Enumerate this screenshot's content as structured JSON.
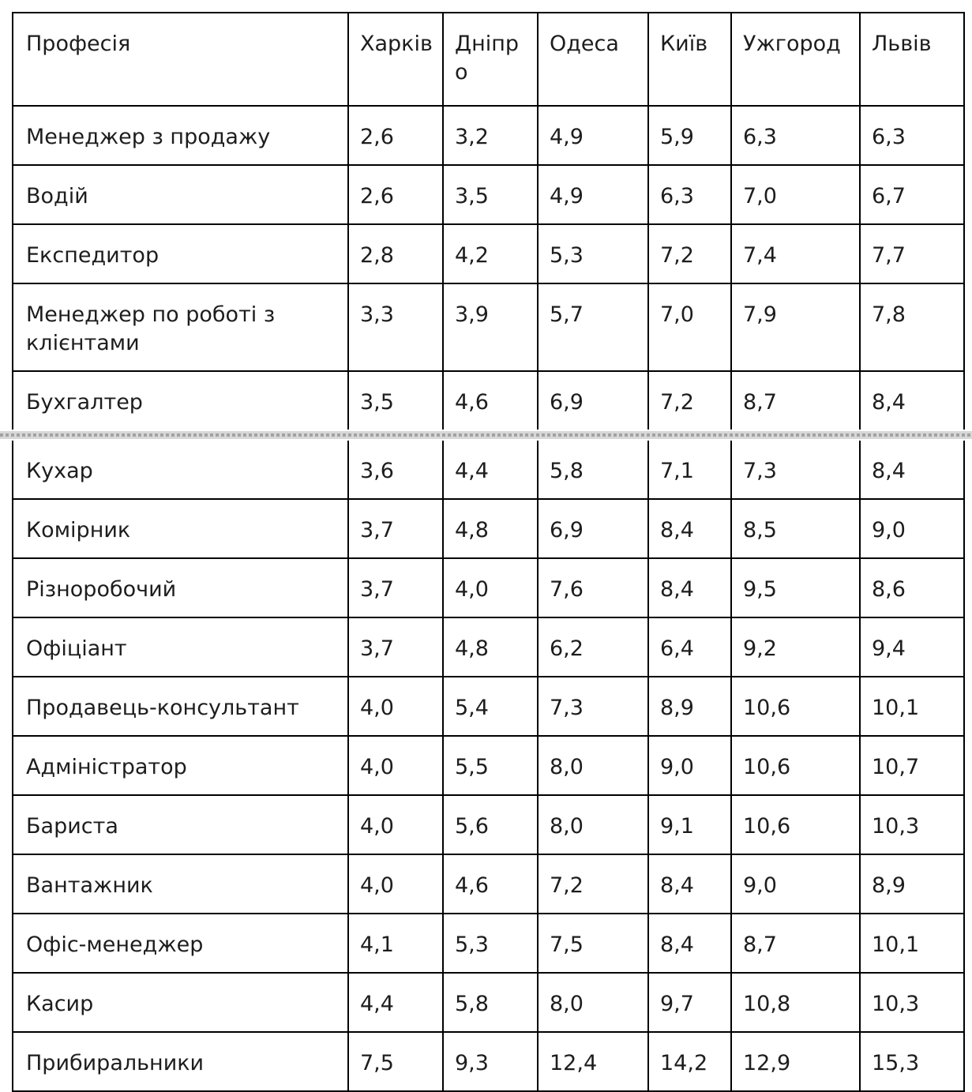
{
  "table": {
    "columns": [
      "Професія",
      "Харків",
      "Дніпро",
      "Одеса",
      "Київ",
      "Ужгород",
      "Львів"
    ],
    "rows": [
      {
        "profession": "Менеджер з продажу",
        "values": [
          "2,6",
          "3,2",
          "4,9",
          "5,9",
          "6,3",
          "6,3"
        ]
      },
      {
        "profession": "Водій",
        "values": [
          "2,6",
          "3,5",
          "4,9",
          "6,3",
          "7,0",
          "6,7"
        ]
      },
      {
        "profession": "Експедитор",
        "values": [
          "2,8",
          "4,2",
          "5,3",
          "7,2",
          "7,4",
          "7,7"
        ]
      },
      {
        "profession": "Менеджер по роботі з клієнтами",
        "values": [
          "3,3",
          "3,9",
          "5,7",
          "7,0",
          "7,9",
          "7,8"
        ]
      },
      {
        "profession": "Бухгалтер",
        "values": [
          "3,5",
          "4,6",
          "6,9",
          "7,2",
          "8,7",
          "8,4"
        ]
      },
      {
        "profession": "Кухар",
        "values": [
          "3,6",
          "4,4",
          "5,8",
          "7,1",
          "7,3",
          "8,4"
        ]
      },
      {
        "profession": "Комірник",
        "values": [
          "3,7",
          "4,8",
          "6,9",
          "8,4",
          "8,5",
          "9,0"
        ]
      },
      {
        "profession": "Різноробочий",
        "values": [
          "3,7",
          "4,0",
          "7,6",
          "8,4",
          "9,5",
          "8,6"
        ]
      },
      {
        "profession": "Офіціант",
        "values": [
          "3,7",
          "4,8",
          "6,2",
          "6,4",
          "9,2",
          "9,4"
        ]
      },
      {
        "profession": "Продавець-консультант",
        "values": [
          "4,0",
          "5,4",
          "7,3",
          "8,9",
          "10,6",
          "10,1"
        ]
      },
      {
        "profession": "Адміністратор",
        "values": [
          "4,0",
          "5,5",
          "8,0",
          "9,0",
          "10,6",
          "10,7"
        ]
      },
      {
        "profession": "Бариста",
        "values": [
          "4,0",
          "5,6",
          "8,0",
          "9,1",
          "10,6",
          "10,3"
        ]
      },
      {
        "profession": "Вантажник",
        "values": [
          "4,0",
          "4,6",
          "7,2",
          "8,4",
          "9,0",
          "8,9"
        ]
      },
      {
        "profession": "Офіс-менеджер",
        "values": [
          "4,1",
          "5,3",
          "7,5",
          "8,4",
          "8,7",
          "10,1"
        ]
      },
      {
        "profession": "Касир",
        "values": [
          "4,4",
          "5,8",
          "8,0",
          "9,7",
          "10,8",
          "10,3"
        ]
      },
      {
        "profession": "Прибиральники",
        "values": [
          "7,5",
          "9,3",
          "12,4",
          "14,2",
          "12,9",
          "15,3"
        ]
      }
    ],
    "split_after_row_index": 5
  },
  "colors": {
    "border": "#000000",
    "text": "#1d1d1d",
    "page_break_light": "#d8d8d8",
    "page_break_dark": "#a2a2a2"
  }
}
